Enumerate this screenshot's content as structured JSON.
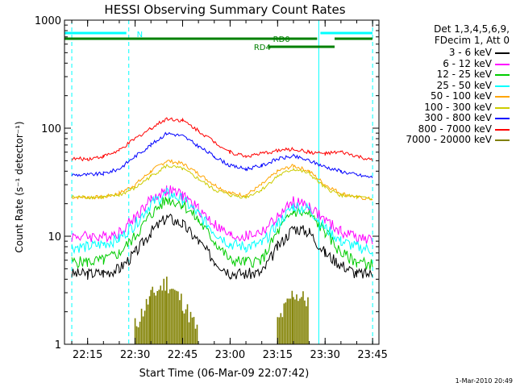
{
  "chart_data": {
    "type": "line",
    "title": "HESSI Observing Summary Count Rates",
    "xlabel": "Start Time (06-Mar-09 22:07:42)",
    "ylabel": "Count Rate (s⁻¹ detector⁻¹)",
    "yscale": "log",
    "ylim": [
      1,
      1000
    ],
    "xlim": [
      "22:07:42",
      "23:47:00"
    ],
    "y_ticks": [
      "1",
      "10",
      "100",
      "1000"
    ],
    "x_ticks": [
      "22:15",
      "22:30",
      "22:45",
      "23:00",
      "23:15",
      "23:30",
      "23:45"
    ],
    "x": [
      "22:10",
      "22:15",
      "22:20",
      "22:25",
      "22:30",
      "22:35",
      "22:40",
      "22:45",
      "22:50",
      "22:55",
      "23:00",
      "23:05",
      "23:10",
      "23:15",
      "23:20",
      "23:25",
      "23:30",
      "23:35",
      "23:40",
      "23:45"
    ],
    "series": [
      {
        "name": "3 - 6 keV",
        "color": "#000000",
        "values": [
          4.5,
          4.5,
          4.6,
          5.0,
          7.0,
          11,
          15,
          13,
          9,
          6,
          4.6,
          4.5,
          4.6,
          8,
          12,
          11,
          7,
          5.5,
          4.5,
          4.5
        ]
      },
      {
        "name": "6 - 12 keV",
        "color": "#ff00ff",
        "values": [
          10,
          10,
          10,
          11,
          15,
          22,
          27,
          24,
          18,
          13,
          10,
          10,
          11,
          15,
          21,
          19,
          14,
          11,
          10,
          9
        ]
      },
      {
        "name": "12 - 25 keV",
        "color": "#00cc00",
        "values": [
          5.8,
          5.8,
          6.0,
          7.0,
          10,
          16,
          22,
          20,
          14,
          9,
          6,
          5.8,
          6,
          11,
          17,
          16,
          11,
          7,
          5.8,
          5.5
        ]
      },
      {
        "name": "25 - 50 keV",
        "color": "#00ffff",
        "values": [
          8.0,
          8.0,
          8.5,
          9.5,
          13,
          20,
          25,
          22,
          16,
          11,
          8.5,
          8.0,
          8.5,
          13,
          19,
          18,
          12,
          9,
          8,
          7.5
        ]
      },
      {
        "name": "50 - 100 keV",
        "color": "#ffa500",
        "values": [
          23,
          23,
          23,
          25,
          30,
          40,
          50,
          47,
          38,
          30,
          25,
          24,
          30,
          40,
          45,
          40,
          30,
          25,
          23,
          22
        ]
      },
      {
        "name": "100 - 300 keV",
        "color": "#cccc00",
        "values": [
          23,
          23,
          23,
          24,
          28,
          36,
          45,
          42,
          34,
          27,
          24,
          23,
          27,
          36,
          42,
          38,
          28,
          24,
          23,
          22
        ]
      },
      {
        "name": "300 - 800 keV",
        "color": "#0000ff",
        "values": [
          37,
          37,
          38,
          42,
          55,
          70,
          90,
          85,
          68,
          55,
          45,
          42,
          45,
          52,
          55,
          50,
          44,
          40,
          37,
          35
        ]
      },
      {
        "name": "800 - 7000 keV",
        "color": "#ff0000",
        "values": [
          52,
          52,
          55,
          62,
          80,
          100,
          123,
          118,
          95,
          75,
          60,
          55,
          58,
          62,
          64,
          60,
          58,
          60,
          55,
          50
        ]
      },
      {
        "name": "7000 - 20000 keV",
        "color": "#808000",
        "values": [
          null,
          null,
          null,
          null,
          1.5,
          2.8,
          3.8,
          2.5,
          1.3,
          null,
          null,
          null,
          null,
          1.6,
          3.0,
          2.5,
          null,
          null,
          null,
          null
        ]
      }
    ],
    "flags": [
      {
        "label": "N",
        "color": "#00ffff"
      },
      {
        "label": "RD0",
        "color": "#008000"
      },
      {
        "label": "RD4",
        "color": "#008000"
      }
    ],
    "header_lines": [
      "Det 1,3,4,5,6,9,",
      "FDecim 1, Att 0"
    ],
    "footer": "1-Mar-2010 20:49",
    "grid": false,
    "legend_position": "right"
  }
}
